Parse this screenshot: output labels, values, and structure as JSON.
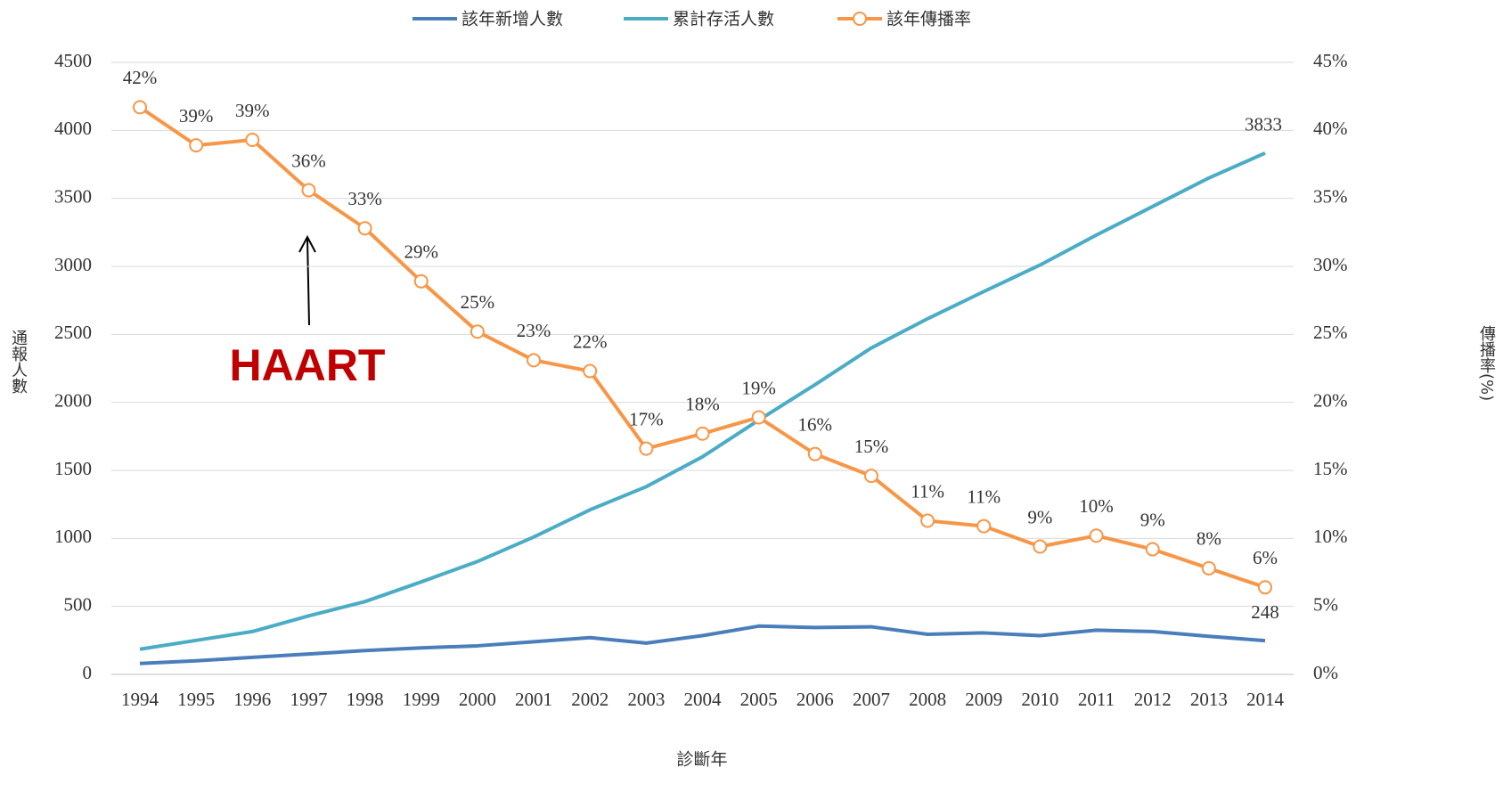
{
  "chart_data": {
    "type": "line",
    "x_label": "診斷年",
    "y_label": "通報人數",
    "y2_label": "傳播率(%)",
    "annotation": "HAART",
    "categories": [
      "1994",
      "1995",
      "1996",
      "1997",
      "1998",
      "1999",
      "2000",
      "2001",
      "2002",
      "2003",
      "2004",
      "2005",
      "2006",
      "2007",
      "2008",
      "2009",
      "2010",
      "2011",
      "2012",
      "2013",
      "2014"
    ],
    "series": [
      {
        "name": "該年新增人數",
        "color": "#4a7ebb",
        "values": [
          80,
          100,
          125,
          150,
          175,
          195,
          210,
          240,
          270,
          230,
          285,
          355,
          345,
          350,
          295,
          305,
          285,
          325,
          315,
          280,
          248
        ]
      },
      {
        "name": "累計存活人數",
        "color": "#4bacc6",
        "values": [
          185,
          250,
          315,
          430,
          535,
          680,
          830,
          1010,
          1210,
          1380,
          1600,
          1870,
          2130,
          2400,
          2615,
          2815,
          3010,
          3230,
          3440,
          3650,
          3833
        ]
      },
      {
        "name": "該年傳播率",
        "color": "#f79646",
        "axis": "y2",
        "marker": "circle",
        "values": [
          41.7,
          38.9,
          39.3,
          35.6,
          32.8,
          28.9,
          25.2,
          23.1,
          22.3,
          16.6,
          17.7,
          18.9,
          16.2,
          14.6,
          11.3,
          10.9,
          9.4,
          10.2,
          9.2,
          7.8,
          6.4
        ],
        "value_labels": [
          "42%",
          "39%",
          "39%",
          "36%",
          "33%",
          "29%",
          "25%",
          "23%",
          "22%",
          "17%",
          "18%",
          "19%",
          "16%",
          "15%",
          "11%",
          "11%",
          "9%",
          "10%",
          "9%",
          "8%",
          "6%"
        ]
      }
    ],
    "ylim": [
      0,
      4500
    ],
    "yticks": [
      0,
      500,
      1000,
      1500,
      2000,
      2500,
      3000,
      3500,
      4000,
      4500
    ],
    "y2lim": [
      0,
      45
    ],
    "y2ticks": [
      {
        "value": 0,
        "label": "0%"
      },
      {
        "value": 5,
        "label": "5%"
      },
      {
        "value": 10,
        "label": "10%"
      },
      {
        "value": 15,
        "label": "15%"
      },
      {
        "value": 20,
        "label": "20%"
      },
      {
        "value": 25,
        "label": "25%"
      },
      {
        "value": 30,
        "label": "30%"
      },
      {
        "value": 35,
        "label": "35%"
      },
      {
        "value": 40,
        "label": "40%"
      },
      {
        "value": 45,
        "label": "45%"
      }
    ],
    "grid": true,
    "legend": "top"
  }
}
